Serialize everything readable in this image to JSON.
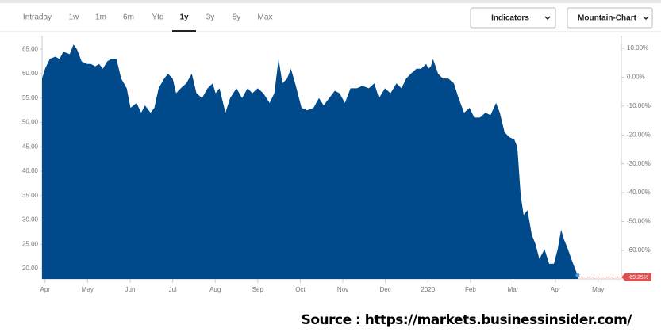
{
  "toolbar": {
    "tabs": [
      "Intraday",
      "1w",
      "1m",
      "6m",
      "Ytd",
      "1y",
      "3y",
      "5y",
      "Max"
    ],
    "active_tab": 5,
    "dropdowns": [
      "Indicators",
      "Mountain-Chart"
    ]
  },
  "chart_data": {
    "type": "area",
    "color": "#004a8c",
    "x": [
      -0.07,
      0,
      0.11,
      0.24,
      0.34,
      0.43,
      0.58,
      0.67,
      0.75,
      0.86,
      0.99,
      1.08,
      1.18,
      1.27,
      1.36,
      1.46,
      1.55,
      1.68,
      1.79,
      1.92,
      2.01,
      2.15,
      2.26,
      2.35,
      2.48,
      2.57,
      2.67,
      2.8,
      2.89,
      3.0,
      3.08,
      3.19,
      3.32,
      3.45,
      3.56,
      3.69,
      3.82,
      3.94,
      4.01,
      4.1,
      4.24,
      4.35,
      4.5,
      4.63,
      4.76,
      4.87,
      5.0,
      5.13,
      5.28,
      5.39,
      5.49,
      5.58,
      5.69,
      5.78,
      5.88,
      6.03,
      6.16,
      6.31,
      6.44,
      6.55,
      6.68,
      6.81,
      6.92,
      7.05,
      7.18,
      7.33,
      7.46,
      7.61,
      7.74,
      7.85,
      7.99,
      8.12,
      8.26,
      8.38,
      8.49,
      8.6,
      8.73,
      8.84,
      8.96,
      9.01,
      9.07,
      9.12,
      9.24,
      9.35,
      9.48,
      9.61,
      9.72,
      9.85,
      9.98,
      10.09,
      10.22,
      10.35,
      10.47,
      10.6,
      10.69,
      10.8,
      10.91,
      11.03,
      11.1,
      11.18,
      11.25,
      11.34,
      11.44,
      11.53,
      11.62,
      11.74,
      11.85,
      11.96,
      12.05,
      12.13,
      12.2,
      12.29,
      12.37,
      12.48,
      12.52
    ],
    "values": [
      59,
      61,
      63,
      63.5,
      63,
      64.5,
      64,
      66,
      65,
      62.5,
      62,
      62,
      61.5,
      62,
      61,
      62.5,
      63,
      63,
      59,
      57,
      53,
      54,
      52,
      53.5,
      52,
      53,
      57,
      59,
      60,
      59,
      56,
      57,
      58,
      60,
      56,
      55,
      57,
      58,
      56,
      57,
      52,
      55,
      57,
      55,
      57,
      56,
      57,
      56,
      54,
      56,
      63,
      58,
      59,
      61,
      58,
      53,
      52.5,
      53,
      55,
      53.5,
      55,
      56.5,
      56,
      54,
      57,
      57,
      57.5,
      57,
      58,
      55,
      57,
      56,
      58,
      57,
      59,
      60,
      61,
      61,
      62,
      61,
      61.5,
      63,
      60,
      59,
      59,
      58,
      55,
      52,
      53,
      51,
      51,
      52,
      51.5,
      54,
      52,
      48,
      47,
      46.5,
      45,
      35,
      31,
      32,
      27,
      25,
      22,
      24,
      21,
      21,
      24,
      28,
      26,
      24,
      22,
      19.5,
      18.7
    ],
    "xlim": [
      -0.07,
      13.49
    ],
    "ylim": [
      17.9,
      67.8
    ],
    "y2lim": [
      -69.9,
      14.4
    ],
    "xticks": [
      {
        "value": 0,
        "label": "Apr"
      },
      {
        "value": 1,
        "label": "May"
      },
      {
        "value": 2,
        "label": "Jun"
      },
      {
        "value": 3,
        "label": "Jul"
      },
      {
        "value": 4,
        "label": "Aug"
      },
      {
        "value": 5,
        "label": "Sep"
      },
      {
        "value": 6,
        "label": "Oct"
      },
      {
        "value": 7,
        "label": "Nov"
      },
      {
        "value": 8,
        "label": "Dec"
      },
      {
        "value": 9,
        "label": "2020"
      },
      {
        "value": 10,
        "label": "Feb"
      },
      {
        "value": 11,
        "label": "Mar"
      },
      {
        "value": 12,
        "label": "Apr"
      },
      {
        "value": 13,
        "label": "May"
      }
    ],
    "yticks": [
      {
        "value": 65,
        "label": "65.00"
      },
      {
        "value": 60,
        "label": "60.00"
      },
      {
        "value": 55,
        "label": "55.00"
      },
      {
        "value": 50,
        "label": "50.00"
      },
      {
        "value": 45,
        "label": "45.00"
      },
      {
        "value": 40,
        "label": "40.00"
      },
      {
        "value": 35,
        "label": "35.00"
      },
      {
        "value": 30,
        "label": "30.00"
      },
      {
        "value": 25,
        "label": "25.00"
      },
      {
        "value": 20,
        "label": "20.00"
      }
    ],
    "y2ticks": [
      {
        "value": 10,
        "label": "10.00%"
      },
      {
        "value": 0,
        "label": "0.00%"
      },
      {
        "value": -10,
        "label": "-10.00%"
      },
      {
        "value": -20,
        "label": "-20.00%"
      },
      {
        "value": -30,
        "label": "-30.00%"
      },
      {
        "value": -40,
        "label": "-40.00%"
      },
      {
        "value": -50,
        "label": "-50.00%"
      },
      {
        "value": -60,
        "label": "-60.00%"
      }
    ],
    "last_change": {
      "value": -69.25,
      "label": "-69.25%"
    },
    "source": "Source : https://markets.businessinsider.com/"
  }
}
